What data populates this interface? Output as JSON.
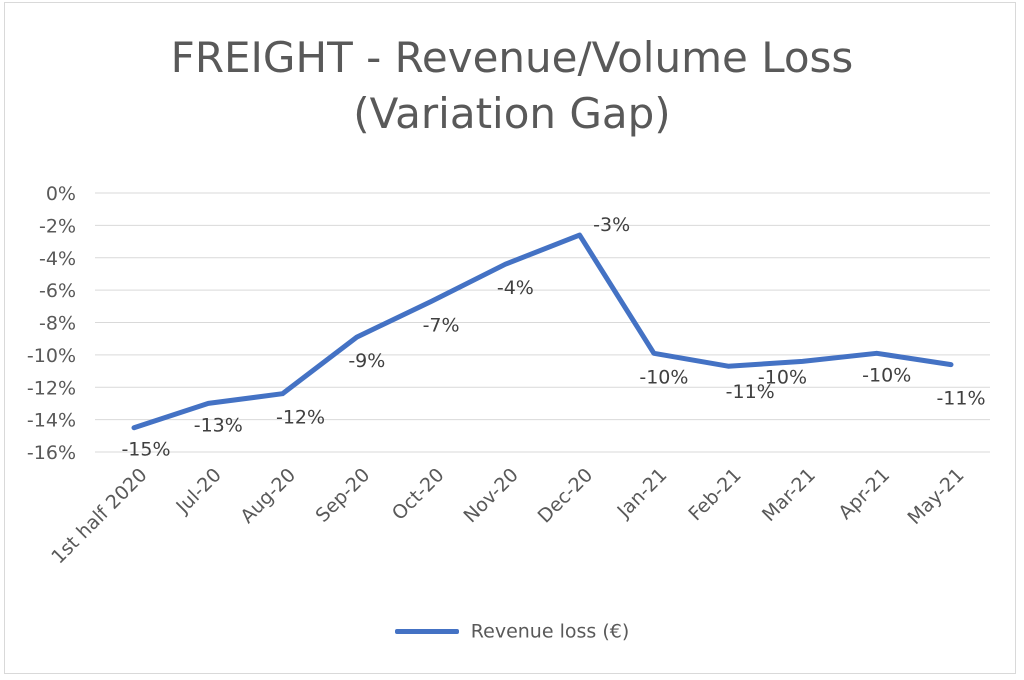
{
  "chart_data": {
    "type": "line",
    "title": "FREIGHT - Revenue/Volume Loss (Variation Gap)",
    "title_lines": [
      "FREIGHT - Revenue/Volume Loss",
      "(Variation Gap)"
    ],
    "categories": [
      "1st half 2020",
      "Jul-20",
      "Aug-20",
      "Sep-20",
      "Oct-20",
      "Nov-20",
      "Dec-20",
      "Jan-21",
      "Feb-21",
      "Mar-21",
      "Apr-21",
      "May-21"
    ],
    "series": [
      {
        "name": "Revenue loss (€)",
        "values": [
          -14.5,
          -13.0,
          -12.4,
          -8.9,
          -6.7,
          -4.4,
          -2.6,
          -9.9,
          -10.7,
          -10.4,
          -9.9,
          -10.6
        ],
        "data_labels": [
          "-15%",
          "-13%",
          "-12%",
          "-9%",
          "-7%",
          "-4%",
          "-3%",
          "-10%",
          "-11%",
          "-10%",
          "-10%",
          "-11%"
        ],
        "color": "#4472c4"
      }
    ],
    "ylim": [
      -16,
      0
    ],
    "yticks": [
      0,
      -2,
      -4,
      -6,
      -8,
      -10,
      -12,
      -14,
      -16
    ],
    "ytick_labels": [
      "0%",
      "-2%",
      "-4%",
      "-6%",
      "-8%",
      "-10%",
      "-12%",
      "-14%",
      "-16%"
    ],
    "xlabel": "",
    "ylabel": "",
    "grid": true,
    "legend_position": "bottom"
  }
}
